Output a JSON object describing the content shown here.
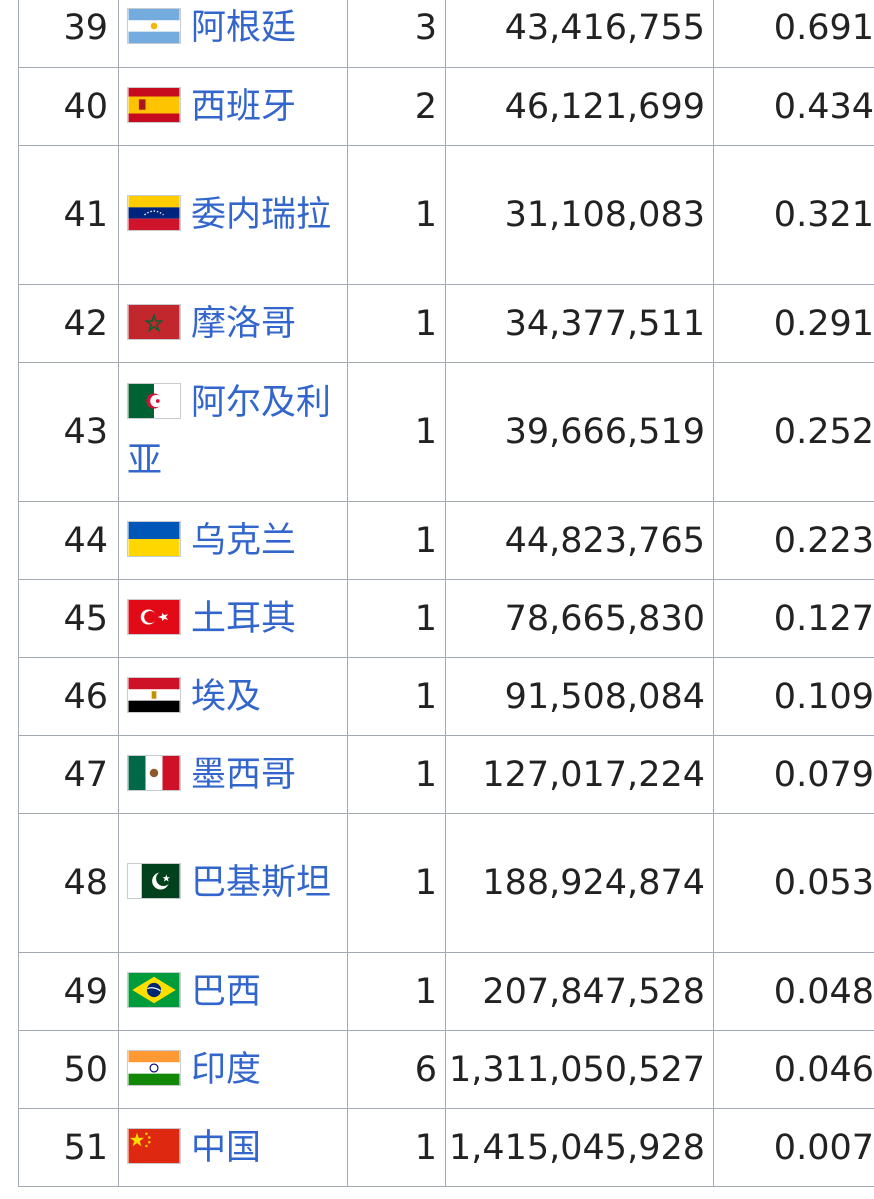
{
  "rows": [
    {
      "rank": "39",
      "country": "阿根廷",
      "count": "3",
      "population": "43,416,755",
      "ratio": "0.691",
      "flag_icon": "argentina-flag-icon"
    },
    {
      "rank": "40",
      "country": "西班牙",
      "count": "2",
      "population": "46,121,699",
      "ratio": "0.434",
      "flag_icon": "spain-flag-icon"
    },
    {
      "rank": "41",
      "country": "委内瑞拉",
      "count": "1",
      "population": "31,108,083",
      "ratio": "0.321",
      "flag_icon": "venezuela-flag-icon"
    },
    {
      "rank": "42",
      "country": "摩洛哥",
      "count": "1",
      "population": "34,377,511",
      "ratio": "0.291",
      "flag_icon": "morocco-flag-icon"
    },
    {
      "rank": "43",
      "country": "阿尔及利亚",
      "count": "1",
      "population": "39,666,519",
      "ratio": "0.252",
      "flag_icon": "algeria-flag-icon"
    },
    {
      "rank": "44",
      "country": "乌克兰",
      "count": "1",
      "population": "44,823,765",
      "ratio": "0.223",
      "flag_icon": "ukraine-flag-icon"
    },
    {
      "rank": "45",
      "country": "土耳其",
      "count": "1",
      "population": "78,665,830",
      "ratio": "0.127",
      "flag_icon": "turkey-flag-icon"
    },
    {
      "rank": "46",
      "country": "埃及",
      "count": "1",
      "population": "91,508,084",
      "ratio": "0.109",
      "flag_icon": "egypt-flag-icon"
    },
    {
      "rank": "47",
      "country": "墨西哥",
      "count": "1",
      "population": "127,017,224",
      "ratio": "0.079",
      "flag_icon": "mexico-flag-icon"
    },
    {
      "rank": "48",
      "country": "巴基斯坦",
      "count": "1",
      "population": "188,924,874",
      "ratio": "0.053",
      "flag_icon": "pakistan-flag-icon"
    },
    {
      "rank": "49",
      "country": "巴西",
      "count": "1",
      "population": "207,847,528",
      "ratio": "0.048",
      "flag_icon": "brazil-flag-icon"
    },
    {
      "rank": "50",
      "country": "印度",
      "count": "6",
      "population": "1,311,050,527",
      "ratio": "0.046",
      "flag_icon": "india-flag-icon"
    },
    {
      "rank": "51",
      "country": "中国",
      "count": "1",
      "population": "1,415,045,928",
      "ratio": "0.007",
      "flag_icon": "china-flag-icon"
    }
  ],
  "colors": {
    "link": "#3366cc",
    "border": "#a2a9b1",
    "text": "#222222"
  }
}
